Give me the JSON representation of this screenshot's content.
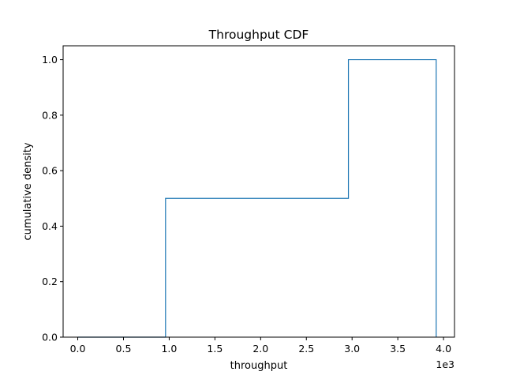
{
  "chart_data": {
    "type": "line",
    "title": "Throughput CDF",
    "xlabel": "throughput",
    "ylabel": "cumulative density",
    "x_offset_label": "1e3",
    "xlim": [
      -0.16,
      4.12
    ],
    "ylim": [
      0.0,
      1.05
    ],
    "xticks": [
      0.0,
      0.5,
      1.0,
      1.5,
      2.0,
      2.5,
      3.0,
      3.5,
      4.0
    ],
    "xtick_labels": [
      "0.0",
      "0.5",
      "1.0",
      "1.5",
      "2.0",
      "2.5",
      "3.0",
      "3.5",
      "4.0"
    ],
    "yticks": [
      0.0,
      0.2,
      0.4,
      0.6,
      0.8,
      1.0
    ],
    "ytick_labels": [
      "0.0",
      "0.2",
      "0.4",
      "0.6",
      "0.8",
      "1.0"
    ],
    "grid": false,
    "step_style": "histogram-outline",
    "series": [
      {
        "color": "#1f77b4",
        "bin_edges": [
          0.0,
          0.96,
          2.96,
          3.92
        ],
        "cumulative_density": [
          0.0,
          0.5,
          1.0
        ]
      }
    ]
  }
}
